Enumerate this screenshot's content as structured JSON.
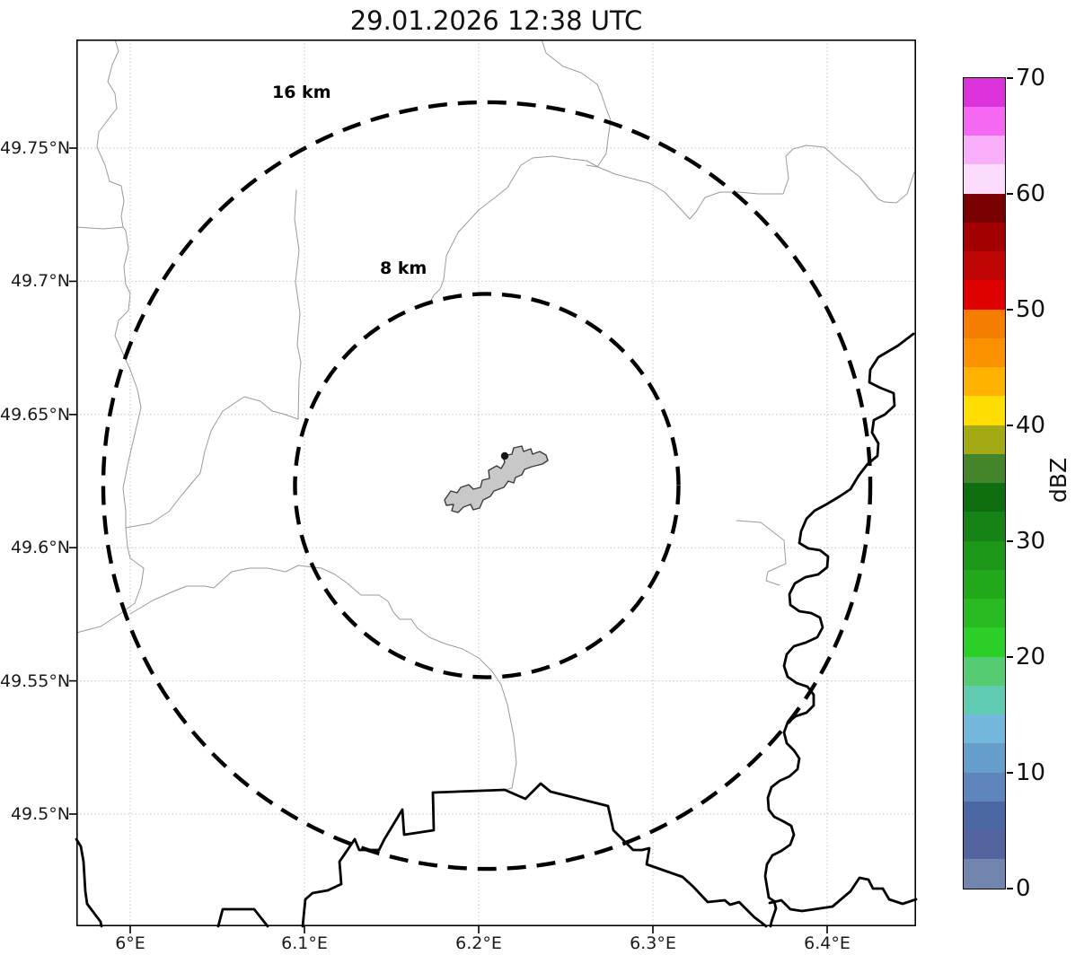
{
  "title": "29.01.2026 12:38 UTC",
  "map": {
    "range_rings": [
      {
        "label": "16 km",
        "radius_km": 16
      },
      {
        "label": "8 km",
        "radius_km": 8
      }
    ]
  },
  "axes": {
    "x": {
      "ticks": [
        "6°E",
        "6.1°E",
        "6.2°E",
        "6.3°E",
        "6.4°E"
      ],
      "degrees": [
        6.0,
        6.1,
        6.2,
        6.3,
        6.4
      ]
    },
    "y": {
      "ticks": [
        "49.75°N",
        "49.7°N",
        "49.65°N",
        "49.6°N",
        "49.55°N",
        "49.5°N"
      ],
      "degrees": [
        49.75,
        49.7,
        49.65,
        49.6,
        49.55,
        49.5
      ]
    }
  },
  "colorbar": {
    "label": "dBZ",
    "tick_values": [
      0,
      10,
      20,
      30,
      40,
      50,
      60,
      70
    ],
    "value_min": 0,
    "value_max": 70,
    "segment_step_dbz": 2.5,
    "segment_colors_low_to_high": [
      "#7285ad",
      "#53649e",
      "#4b68a4",
      "#5e86bd",
      "#659ecb",
      "#73b7dd",
      "#5fccb1",
      "#55cb72",
      "#2ccf27",
      "#28ba20",
      "#22a81b",
      "#1d9717",
      "#168316",
      "#0f6e0f",
      "#44842a",
      "#a3aa14",
      "#fedd02",
      "#ffb300",
      "#fc9100",
      "#f57e00",
      "#e00000",
      "#bf0404",
      "#a30000",
      "#7a0101",
      "#fcdcfc",
      "#f9aef9",
      "#f468f4",
      "#dd33dd"
    ]
  }
}
